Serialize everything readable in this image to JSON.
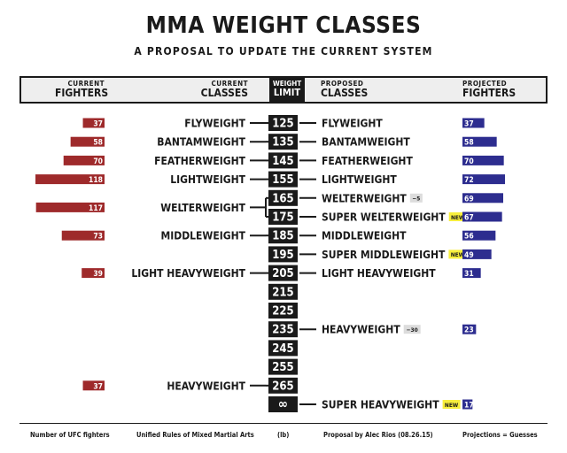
{
  "title": "MMA WEIGHT CLASSES",
  "subtitle": "A PROPOSAL TO UPDATE THE CURRENT SYSTEM",
  "header": {
    "current_fighters_top": "CURRENT",
    "current_fighters_bottom": "FIGHTERS",
    "current_classes_top": "CURRENT",
    "current_classes_bottom": "CLASSES",
    "weight_limit_top": "WEIGHT",
    "weight_limit_bottom": "LIMIT",
    "proposed_classes_top": "PROPOSED",
    "proposed_classes_bottom": "CLASSES",
    "projected_fighters_top": "PROJECTED",
    "projected_fighters_bottom": "FIGHTERS"
  },
  "footer": {
    "left": "Number of UFC fighters",
    "center_left": "Unified Rules of Mixed Martial Arts",
    "center": "(lb)",
    "center_right": "Proposal by Alec Rios (08.26.15)",
    "right": "Projections = Guesses"
  },
  "colors": {
    "current_bar": "#9e2a2b",
    "projected_bar": "#2d2d8f",
    "new_badge": "#f7ee3c",
    "delta_badge": "#dcdcdc",
    "weight_box": "#1a1a1a"
  },
  "chart_data": {
    "type": "bar",
    "weight_limits": [
      "125",
      "135",
      "145",
      "155",
      "165",
      "175",
      "185",
      "195",
      "205",
      "215",
      "225",
      "235",
      "245",
      "255",
      "265",
      "∞"
    ],
    "current": [
      {
        "name": "FLYWEIGHT",
        "limits": [
          "125"
        ],
        "fighters": 37
      },
      {
        "name": "BANTAMWEIGHT",
        "limits": [
          "135"
        ],
        "fighters": 58
      },
      {
        "name": "FEATHERWEIGHT",
        "limits": [
          "145"
        ],
        "fighters": 70
      },
      {
        "name": "LIGHTWEIGHT",
        "limits": [
          "155"
        ],
        "fighters": 118
      },
      {
        "name": "WELTERWEIGHT",
        "limits": [
          "165",
          "175"
        ],
        "fighters": 117
      },
      {
        "name": "MIDDLEWEIGHT",
        "limits": [
          "185"
        ],
        "fighters": 73
      },
      {
        "name": "LIGHT HEAVYWEIGHT",
        "limits": [
          "205"
        ],
        "fighters": 39
      },
      {
        "name": "HEAVYWEIGHT",
        "limits": [
          "265"
        ],
        "fighters": 37
      }
    ],
    "proposed": [
      {
        "name": "FLYWEIGHT",
        "limit": "125",
        "fighters": 37,
        "badge": ""
      },
      {
        "name": "BANTAMWEIGHT",
        "limit": "135",
        "fighters": 58,
        "badge": ""
      },
      {
        "name": "FEATHERWEIGHT",
        "limit": "145",
        "fighters": 70,
        "badge": ""
      },
      {
        "name": "LIGHTWEIGHT",
        "limit": "155",
        "fighters": 72,
        "badge": ""
      },
      {
        "name": "WELTERWEIGHT",
        "limit": "165",
        "fighters": 69,
        "badge": "−5"
      },
      {
        "name": "SUPER WELTERWEIGHT",
        "limit": "175",
        "fighters": 67,
        "badge": "NEW"
      },
      {
        "name": "MIDDLEWEIGHT",
        "limit": "185",
        "fighters": 56,
        "badge": ""
      },
      {
        "name": "SUPER MIDDLEWEIGHT",
        "limit": "195",
        "fighters": 49,
        "badge": "NEW"
      },
      {
        "name": "LIGHT HEAVYWEIGHT",
        "limit": "205",
        "fighters": 31,
        "badge": ""
      },
      {
        "name": "HEAVYWEIGHT",
        "limit": "235",
        "fighters": 23,
        "badge": "−30"
      },
      {
        "name": "SUPER HEAVYWEIGHT",
        "limit": "∞",
        "fighters": 17,
        "badge": "NEW"
      }
    ]
  }
}
